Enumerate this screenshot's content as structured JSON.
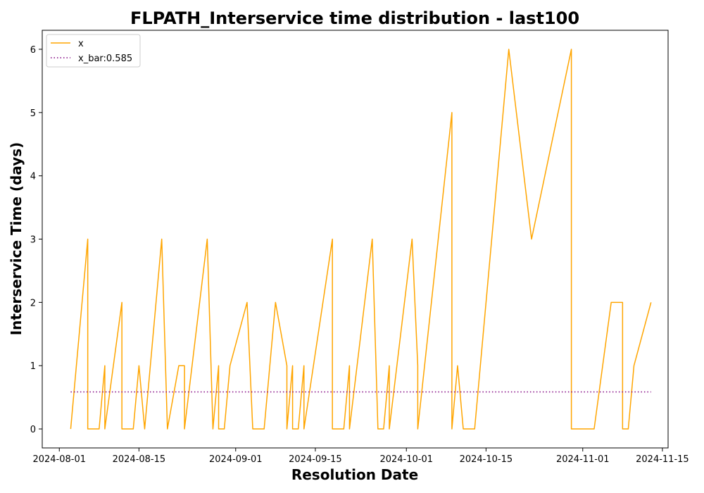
{
  "chart_data": {
    "type": "line",
    "title": "FLPATH_Interservice time distribution - last100",
    "xlabel": "Resolution Date",
    "ylabel": "Interservice Time (days)",
    "x_ticks": [
      "2024-08-01",
      "2024-08-15",
      "2024-09-01",
      "2024-09-15",
      "2024-10-01",
      "2024-10-15",
      "2024-11-01",
      "2024-11-15"
    ],
    "y_ticks": [
      "0",
      "1",
      "2",
      "3",
      "4",
      "5",
      "6"
    ],
    "xlim": [
      "2024-07-29",
      "2024-11-16"
    ],
    "ylim": [
      -0.3,
      6.3
    ],
    "legend_position": "top-left",
    "series": [
      {
        "name": "x",
        "color": "#ffa500",
        "style": "solid",
        "x": [
          "2024-08-03",
          "2024-08-06",
          "2024-08-06",
          "2024-08-08",
          "2024-08-09",
          "2024-08-09",
          "2024-08-12",
          "2024-08-12",
          "2024-08-14",
          "2024-08-15",
          "2024-08-16",
          "2024-08-19",
          "2024-08-20",
          "2024-08-22",
          "2024-08-23",
          "2024-08-23",
          "2024-08-27",
          "2024-08-28",
          "2024-08-29",
          "2024-08-29",
          "2024-08-30",
          "2024-08-31",
          "2024-09-03",
          "2024-09-04",
          "2024-09-06",
          "2024-09-08",
          "2024-09-10",
          "2024-09-10",
          "2024-09-11",
          "2024-09-11",
          "2024-09-12",
          "2024-09-13",
          "2024-09-13",
          "2024-09-18",
          "2024-09-18",
          "2024-09-20",
          "2024-09-21",
          "2024-09-21",
          "2024-09-25",
          "2024-09-26",
          "2024-09-27",
          "2024-09-28",
          "2024-09-28",
          "2024-10-02",
          "2024-10-03",
          "2024-10-03",
          "2024-10-09",
          "2024-10-09",
          "2024-10-10",
          "2024-10-11",
          "2024-10-13",
          "2024-10-19",
          "2024-10-23",
          "2024-10-30",
          "2024-10-30",
          "2024-11-03",
          "2024-11-06",
          "2024-11-08",
          "2024-11-08",
          "2024-11-09",
          "2024-11-10",
          "2024-11-13"
        ],
        "values": [
          0,
          3,
          0,
          0,
          1,
          0,
          2,
          0,
          0,
          1,
          0,
          3,
          0,
          1,
          1,
          0,
          3,
          0,
          1,
          0,
          0,
          1,
          2,
          0,
          0,
          2,
          1,
          0,
          1,
          0,
          0,
          1,
          0,
          3,
          0,
          0,
          1,
          0,
          3,
          0,
          0,
          1,
          0,
          3,
          1,
          0,
          5,
          0,
          1,
          0,
          0,
          6,
          3,
          6,
          0,
          0,
          2,
          2,
          0,
          0,
          1,
          2
        ]
      },
      {
        "name": "x_bar:0.585",
        "color": "#800080",
        "style": "dotted",
        "x": [
          "2024-08-03",
          "2024-11-13"
        ],
        "values": [
          0.585,
          0.585
        ]
      }
    ]
  }
}
